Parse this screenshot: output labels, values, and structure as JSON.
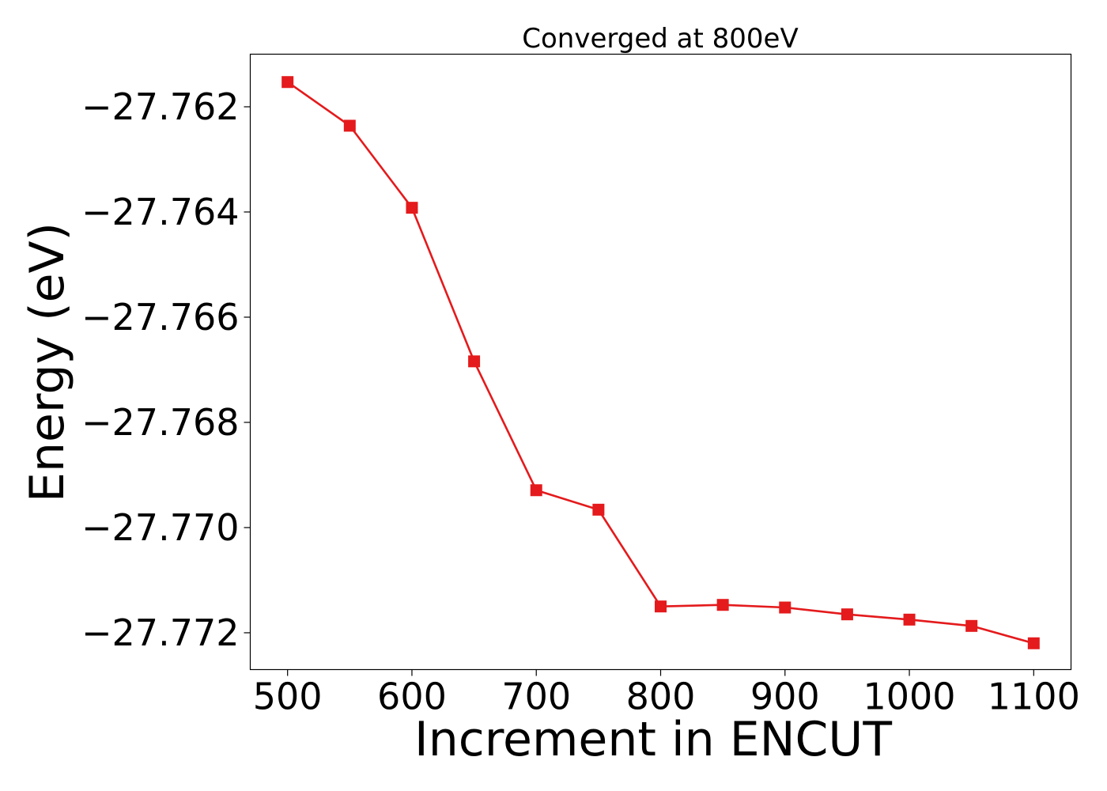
{
  "chart_data": {
    "type": "line",
    "title": "Converged at 800eV",
    "xlabel": "Increment in ENCUT",
    "ylabel": "Energy (eV)",
    "xlim": [
      470,
      1130
    ],
    "ylim": [
      -27.7727,
      -27.761
    ],
    "xticks": [
      500,
      600,
      700,
      800,
      900,
      1000,
      1100
    ],
    "xtick_labels": [
      "500",
      "600",
      "700",
      "800",
      "900",
      "1000",
      "1100"
    ],
    "yticks": [
      -27.762,
      -27.764,
      -27.766,
      -27.768,
      -27.77,
      -27.772
    ],
    "ytick_labels": [
      "−27.762",
      "−27.764",
      "−27.766",
      "−27.768",
      "−27.770",
      "−27.772"
    ],
    "grid": false,
    "series": [
      {
        "color": "#e41a1c",
        "marker": "square",
        "x": [
          500,
          550,
          600,
          650,
          700,
          750,
          800,
          850,
          900,
          950,
          1000,
          1050,
          1100
        ],
        "y": [
          -27.76153,
          -27.76236,
          -27.76392,
          -27.76684,
          -27.76929,
          -27.76966,
          -27.7715,
          -27.77147,
          -27.77152,
          -27.77165,
          -27.77175,
          -27.77187,
          -27.7722
        ]
      }
    ]
  }
}
